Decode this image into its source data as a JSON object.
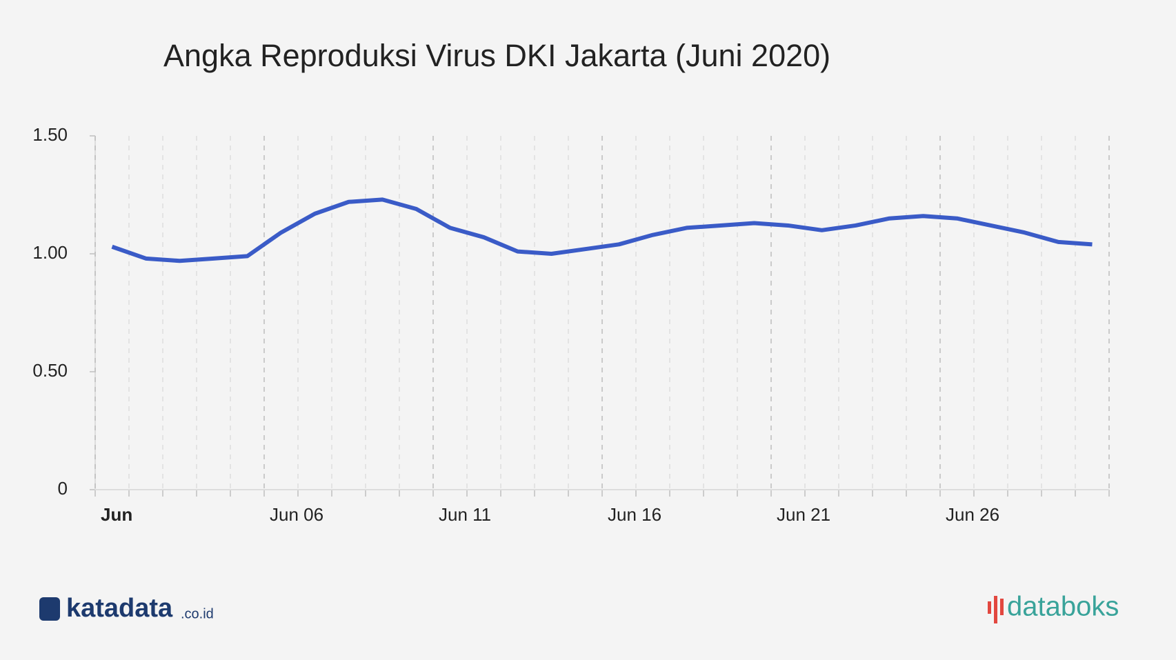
{
  "chart_data": {
    "type": "line",
    "title": "Angka Reproduksi Virus DKI Jakarta (Juni 2020)",
    "categories": [
      "Jun",
      null,
      null,
      null,
      null,
      "Jun 06",
      null,
      null,
      null,
      null,
      "Jun 11",
      null,
      null,
      null,
      null,
      "Jun 16",
      null,
      null,
      null,
      null,
      "Jun 21",
      null,
      null,
      null,
      null,
      "Jun 26",
      null,
      null,
      null,
      null
    ],
    "values": [
      1.03,
      0.98,
      0.97,
      0.98,
      0.99,
      1.09,
      1.17,
      1.22,
      1.23,
      1.19,
      1.11,
      1.07,
      1.01,
      1.0,
      1.02,
      1.04,
      1.08,
      1.11,
      1.12,
      1.13,
      1.12,
      1.1,
      1.12,
      1.15,
      1.16,
      1.15,
      1.12,
      1.09,
      1.05,
      1.04
    ],
    "color": "#3a5bc7",
    "ylim": [
      0,
      1.5
    ],
    "yticks": [
      0,
      {
        "value": 0.5,
        "label": "0.50"
      },
      {
        "value": 1,
        "label": "1.00"
      },
      {
        "value": 1.5,
        "label": "1.50"
      }
    ],
    "grid": true
  },
  "footer": {
    "left_logo": "katadata",
    "left_suffix": ".co.id",
    "right_logo": "databoks"
  }
}
